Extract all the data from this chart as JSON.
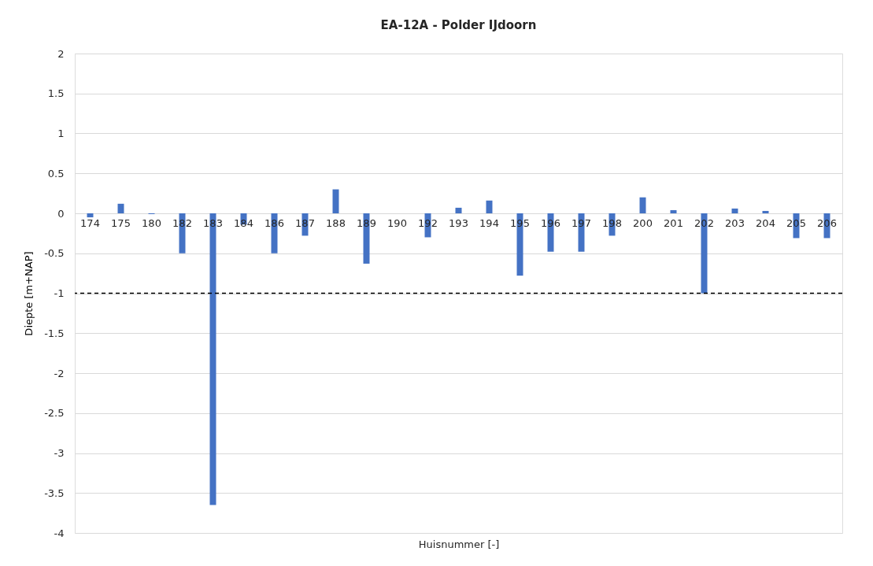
{
  "chart_data": {
    "type": "bar",
    "title": "EA-12A - Polder IJdoorn",
    "xlabel": "Huisnummer [-]",
    "ylabel": "Diepte [m+NAP]",
    "categories": [
      "174",
      "175",
      "180",
      "182",
      "183",
      "184",
      "186",
      "187",
      "188",
      "189",
      "190",
      "192",
      "193",
      "194",
      "195",
      "196",
      "197",
      "198",
      "200",
      "201",
      "202",
      "203",
      "204",
      "205",
      "206"
    ],
    "values": [
      -0.05,
      0.12,
      -0.01,
      -0.5,
      -3.65,
      -0.14,
      -0.5,
      -0.28,
      0.3,
      -0.63,
      null,
      -0.3,
      0.07,
      0.16,
      -0.78,
      -0.48,
      -0.48,
      -0.28,
      0.2,
      0.04,
      -1.0,
      0.06,
      0.03,
      -0.31,
      -0.31
    ],
    "color": "#4472c4",
    "ylim": [
      -4,
      2
    ],
    "yticks": [
      -4,
      -3.5,
      -3,
      -2.5,
      -2,
      -1.5,
      -1,
      -0.5,
      0,
      0.5,
      1,
      1.5,
      2
    ],
    "grid": "y",
    "ref_lines": [
      {
        "axis": "y",
        "value": -1,
        "color": "#000000",
        "line_style": "dashed"
      }
    ]
  }
}
